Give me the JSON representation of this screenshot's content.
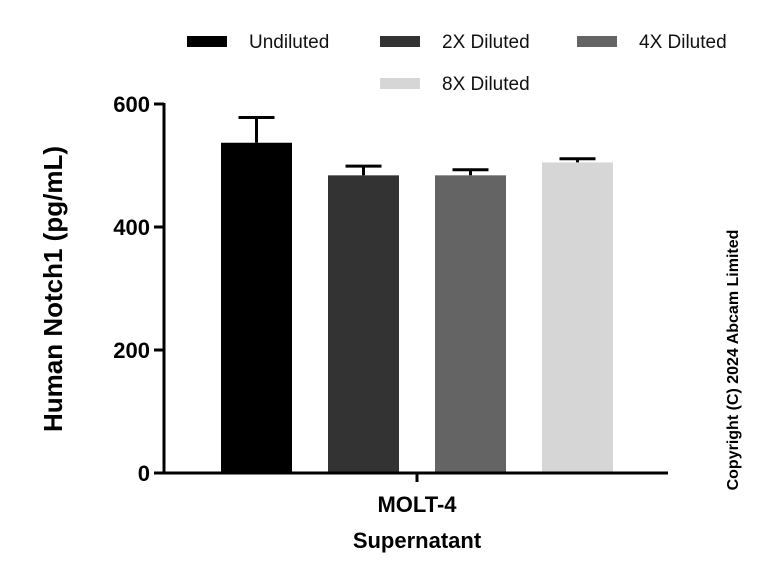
{
  "chart_data": {
    "type": "bar",
    "categories": [
      "MOLT-4",
      "Supernatant"
    ],
    "ylabel": "Human Notch1 (pg/mL)",
    "ylim": [
      0,
      600
    ],
    "yticks": [
      "0",
      "200",
      "400",
      "600"
    ],
    "grid": false,
    "legend_position": "top",
    "series": [
      {
        "name": "Undiluted",
        "value": 537,
        "error": 41,
        "color": "#000000"
      },
      {
        "name": "2X Diluted",
        "value": 484,
        "error": 15,
        "color": "#333333"
      },
      {
        "name": "4X Diluted",
        "value": 484,
        "error": 9,
        "color": "#646464"
      },
      {
        "name": "8X Diluted",
        "value": 505,
        "error": 6,
        "color": "#d6d6d6"
      }
    ]
  },
  "copyright": "Copyright (C) 2024 Abcam Limited"
}
